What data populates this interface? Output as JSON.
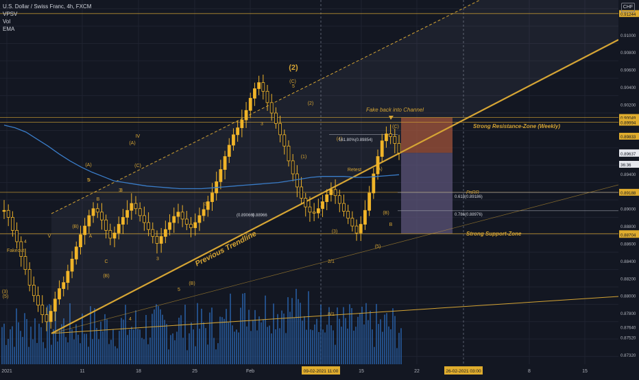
{
  "legend": {
    "symbol_line": "U.S. Dollar / Swiss Franc, 4h, FXCM",
    "indicator_1": "VPSV",
    "indicator_2": "Vol",
    "indicator_3": "EMA"
  },
  "currency_button": "CHF",
  "colors": {
    "background": "#131722",
    "accent": "#d6a534",
    "candle": "#f0b429",
    "volume": "#2962a8",
    "ema": "#3a7dc9",
    "price_tag": "#e0ad2e",
    "grid": "#1f2330",
    "resistance_box": "#a0533a",
    "support_box": "#5c5478"
  },
  "chart_data": {
    "type": "candlestick",
    "y_axis": {
      "scale": "linear",
      "range": [
        0.8721,
        0.914
      ],
      "tick_labels": [
        "0.91244",
        "0.91000",
        "0.90800",
        "0.90600",
        "0.90400",
        "0.90200",
        "0.90049",
        "0.89994",
        "0.89833",
        "0.89642",
        "0.89637",
        "36:36",
        "0.89400",
        "0.89188",
        "0.89000",
        "0.88800",
        "0.88712",
        "0.88704",
        "0.88600",
        "0.88400",
        "0.88200",
        "0.88000",
        "0.87800",
        "0.87640",
        "0.87520",
        "0.87320"
      ],
      "highlighted_labels": [
        "0.91244",
        "0.90049",
        "0.89994",
        "0.89833",
        "0.89642",
        "0.89637",
        "36:36",
        "0.89188",
        "0.88712",
        "0.88704"
      ]
    },
    "x_axis": {
      "tick_labels": [
        "2021",
        "11",
        "18",
        "25",
        "Feb",
        "15",
        "22",
        "8",
        "15"
      ],
      "highlighted_labels": [
        "09-02-2021   11:00",
        "26-02-2021   03:00"
      ]
    },
    "series": [
      {
        "name": "USDCHF",
        "type": "candlestick",
        "close_path": [
          0.8898,
          0.889,
          0.8875,
          0.8862,
          0.8845,
          0.883,
          0.8812,
          0.88,
          0.8789,
          0.8778,
          0.877,
          0.8782,
          0.8796,
          0.8808,
          0.8815,
          0.8828,
          0.8842,
          0.8856,
          0.887,
          0.888,
          0.8892,
          0.89,
          0.8896,
          0.8887,
          0.8875,
          0.8866,
          0.8872,
          0.8882,
          0.889,
          0.8898,
          0.8906,
          0.89,
          0.8892,
          0.8884,
          0.8876,
          0.8868,
          0.886,
          0.8868,
          0.8876,
          0.8884,
          0.8891,
          0.8896,
          0.8888,
          0.8882,
          0.8878,
          0.8884,
          0.8892,
          0.8899,
          0.8908,
          0.8918,
          0.8931,
          0.8945,
          0.896,
          0.8973,
          0.8985,
          0.8993,
          0.9002,
          0.9013,
          0.9027,
          0.9038,
          0.9045,
          0.9035,
          0.9022,
          0.901,
          0.8998,
          0.8985,
          0.8972,
          0.8955,
          0.894,
          0.8925,
          0.8912,
          0.8902,
          0.8896,
          0.8895,
          0.89,
          0.8908,
          0.8916,
          0.8922,
          0.8915,
          0.8906,
          0.8897,
          0.8889,
          0.888,
          0.8872,
          0.8882,
          0.8898,
          0.8918,
          0.894,
          0.896,
          0.8978,
          0.8986,
          0.8983,
          0.8975,
          0.8964
        ]
      },
      {
        "name": "EMA",
        "type": "line",
        "values": [
          0.8996,
          0.8993,
          0.8988,
          0.898,
          0.8972,
          0.8963,
          0.8955,
          0.8948,
          0.8942,
          0.8937,
          0.8932,
          0.893,
          0.8928,
          0.8926,
          0.8925,
          0.8924,
          0.8923,
          0.8923,
          0.8923,
          0.8924,
          0.8925,
          0.8926,
          0.8927,
          0.8928,
          0.8929,
          0.893,
          0.8932,
          0.8934,
          0.8936,
          0.8937,
          0.8937,
          0.8937,
          0.8936,
          0.8936,
          0.8937,
          0.8938,
          0.8939
        ]
      },
      {
        "name": "Vol",
        "type": "bar",
        "note": "volume histogram"
      }
    ],
    "annotations": {
      "wave_labels": [
        "(2)",
        "(C)",
        "5",
        "3",
        "(2)",
        "(1)",
        "(4)",
        "(A)",
        "(B)",
        "(C)",
        "(3)",
        "(5)",
        "(A)",
        "(B)",
        "(C)",
        "5",
        "3",
        "Ⅳ",
        "(A)",
        "(B)",
        "A",
        "B",
        "C",
        "3",
        "5",
        "3",
        "(B)",
        "(5)",
        "(3)",
        "4",
        "Ⅴ",
        "3",
        "4",
        "5",
        "2/1",
        "8/1",
        "Retest",
        "B"
      ],
      "texts": [
        "Fake back into Channel",
        "Strong Resistance-Zone (Weekly)",
        "Strong Support-Zone",
        "Previous Trendline",
        "PnRR",
        "Fakeout"
      ],
      "fib_levels": [
        "161.80%(0.89854)",
        "0.618(0.89186)",
        "0.786(0.88976)",
        "(0.89066)",
        "0.88966"
      ]
    },
    "grid": true,
    "legend_placement": "top-left"
  }
}
